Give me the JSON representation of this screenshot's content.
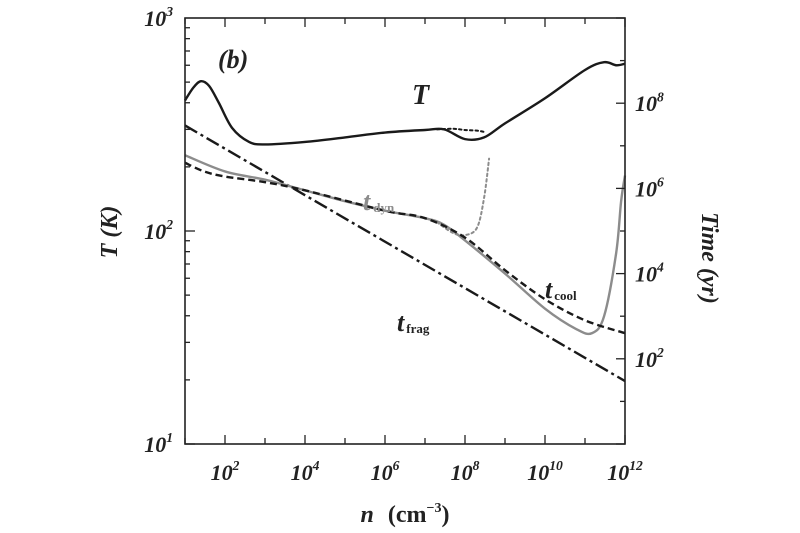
{
  "chart_data": {
    "type": "line",
    "panel_label": "(b)",
    "x_axis": {
      "scale": "log",
      "lim": [
        10,
        1000000000000.0
      ],
      "ticks": [
        100.0,
        10000.0,
        1000000.0,
        100000000.0,
        10000000000.0,
        1000000000000.0
      ],
      "tick_labels": [
        {
          "base": "10",
          "exp": "2"
        },
        {
          "base": "10",
          "exp": "4"
        },
        {
          "base": "10",
          "exp": "6"
        },
        {
          "base": "10",
          "exp": "8"
        },
        {
          "base": "10",
          "exp": "10"
        },
        {
          "base": "10",
          "exp": "12"
        }
      ],
      "label": {
        "var": "n",
        "unit": "(cm",
        "unit_exp": "−3",
        "unit_close": ")"
      }
    },
    "y_left": {
      "scale": "log",
      "lim": [
        10,
        1000
      ],
      "ticks": [
        10,
        100,
        1000
      ],
      "tick_labels": [
        {
          "base": "10",
          "exp": "1"
        },
        {
          "base": "10",
          "exp": "2"
        },
        {
          "base": "10",
          "exp": "3"
        }
      ],
      "label": "T  (K)"
    },
    "y_right": {
      "scale": "log",
      "lim": [
        1,
        10000000000.0
      ],
      "ticks": [
        100.0,
        10000.0,
        1000000.0,
        100000000.0
      ],
      "tick_labels": [
        {
          "base": "10",
          "exp": "2"
        },
        {
          "base": "10",
          "exp": "4"
        },
        {
          "base": "10",
          "exp": "6"
        },
        {
          "base": "10",
          "exp": "8"
        }
      ],
      "label": "Time (yr)"
    },
    "annotations": {
      "T": "T",
      "t_dyn": {
        "main": "t",
        "sub": "dyn"
      },
      "t_cool": {
        "main": "t",
        "sub": "cool"
      },
      "t_frag": {
        "main": "t",
        "sub": "frag"
      }
    },
    "series": [
      {
        "name": "T",
        "axis": "left",
        "style": "solid",
        "color": "#1a1a1a",
        "points": [
          [
            10,
            410
          ],
          [
            16,
            470
          ],
          [
            25,
            505
          ],
          [
            40,
            480
          ],
          [
            70,
            400
          ],
          [
            150,
            305
          ],
          [
            400,
            262
          ],
          [
            1000,
            255
          ],
          [
            10000.0,
            262
          ],
          [
            100000.0,
            275
          ],
          [
            1000000.0,
            290
          ],
          [
            10000000.0,
            298
          ],
          [
            30000000.0,
            300
          ],
          [
            100000000.0,
            270
          ],
          [
            300000000.0,
            275
          ],
          [
            1000000000.0,
            320
          ],
          [
            10000000000.0,
            420
          ],
          [
            100000000000.0,
            570
          ],
          [
            300000000000.0,
            620
          ],
          [
            600000000000.0,
            600
          ],
          [
            1000000000000.0,
            610
          ]
        ]
      },
      {
        "name": "T (dotted)",
        "axis": "left",
        "style": "dotted",
        "color": "#1a1a1a",
        "points": [
          [
            20000000.0,
            300
          ],
          [
            50000000.0,
            302
          ],
          [
            100000000.0,
            298
          ],
          [
            200000000.0,
            296
          ],
          [
            300000000.0,
            292
          ]
        ]
      },
      {
        "name": "t_frag",
        "axis": "right",
        "style": "dashdot",
        "color": "#1a1a1a",
        "points": [
          [
            10,
            30000000.0
          ],
          [
            1000000000000.0,
            30.0
          ]
        ]
      },
      {
        "name": "t_dyn",
        "axis": "right",
        "style": "solid",
        "color": "#8c8c8c",
        "points": [
          [
            10,
            6000000.0
          ],
          [
            100,
            2500000.0
          ],
          [
            1000,
            1600000.0
          ],
          [
            10000.0,
            900000.0
          ],
          [
            100000.0,
            500000.0
          ],
          [
            1000000.0,
            300000.0
          ],
          [
            10000000.0,
            200000.0
          ],
          [
            30000000.0,
            140000.0
          ],
          [
            100000000.0,
            60000.0
          ],
          [
            1000000000.0,
            10000.0
          ],
          [
            10000000000.0,
            1500.0
          ],
          [
            60000000000.0,
            500.0
          ],
          [
            150000000000.0,
            400.0
          ],
          [
            300000000000.0,
            1000.0
          ],
          [
            600000000000.0,
            30000.0
          ],
          [
            800000000000.0,
            500000.0
          ],
          [
            1000000000000.0,
            2000000.0
          ]
        ]
      },
      {
        "name": "t_dyn (dotted)",
        "axis": "right",
        "style": "dotted",
        "color": "#8c8c8c",
        "points": [
          [
            20000000.0,
            160000.0
          ],
          [
            50000000.0,
            90000.0
          ],
          [
            100000000.0,
            80000.0
          ],
          [
            200000000.0,
            120000.0
          ],
          [
            300000000.0,
            600000.0
          ],
          [
            400000000.0,
            5000000.0
          ]
        ]
      },
      {
        "name": "t_cool",
        "axis": "right",
        "style": "dashed",
        "color": "#1a1a1a",
        "points": [
          [
            10,
            4000000.0
          ],
          [
            30,
            2500000.0
          ],
          [
            100,
            1900000.0
          ],
          [
            1000,
            1400000.0
          ],
          [
            10000.0,
            900000.0
          ],
          [
            1000000.0,
            300000.0
          ],
          [
            10000000.0,
            200000.0
          ],
          [
            100000000.0,
            70000.0
          ],
          [
            1000000000.0,
            12000.0
          ],
          [
            10000000000.0,
            2500.0
          ],
          [
            100000000000.0,
            800.0
          ],
          [
            1000000000000.0,
            400.0
          ]
        ]
      }
    ]
  }
}
